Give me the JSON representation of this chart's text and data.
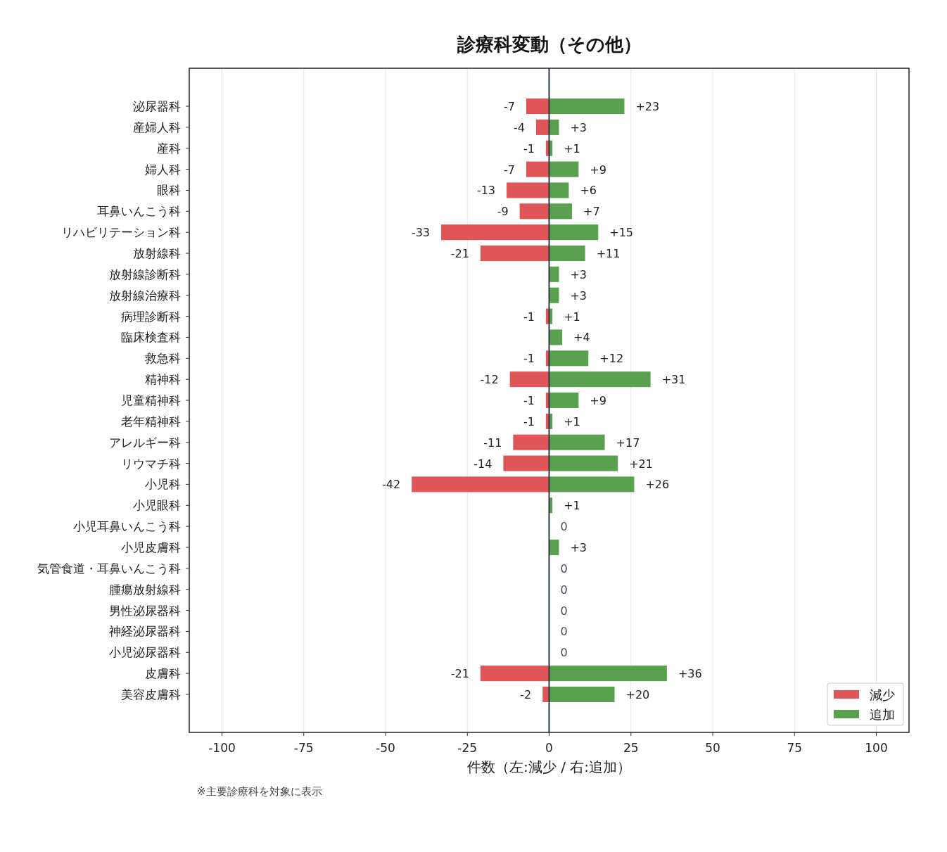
{
  "chart_data": {
    "type": "bar",
    "orientation": "horizontal",
    "stacked": true,
    "title": "診療科変動（その他）",
    "xlabel": "件数（左:減少 / 右:追加）",
    "annotations": [
      "※主要診療科を対象に表示"
    ],
    "categories": [
      "泌尿器科",
      "産婦人科",
      "産科",
      "婦人科",
      "眼科",
      "耳鼻いんこう科",
      "リハビリテーション科",
      "放射線科",
      "放射線診断科",
      "放射線治療科",
      "病理診断科",
      "臨床検査科",
      "救急科",
      "精神科",
      "児童精神科",
      "老年精神科",
      "アレルギー科",
      "リウマチ科",
      "小児科",
      "小児眼科",
      "小児耳鼻いんこう科",
      "小児皮膚科",
      "気管食道・耳鼻いんこう科",
      "腫瘍放射線科",
      "男性泌尿器科",
      "神経泌尿器科",
      "小児泌尿器科",
      "皮膚科",
      "美容皮膚科"
    ],
    "series": [
      {
        "name": "減少",
        "color": "#e05558",
        "values": [
          -7,
          -4,
          -1,
          -7,
          -13,
          -9,
          -33,
          -21,
          0,
          0,
          -1,
          0,
          -1,
          -12,
          -1,
          -1,
          -11,
          -14,
          -42,
          0,
          0,
          0,
          0,
          0,
          0,
          0,
          0,
          -21,
          -2
        ],
        "value_labels": [
          "-7",
          "-4",
          "-1",
          "-7",
          "-13",
          "-9",
          "-33",
          "-21",
          null,
          null,
          "-1",
          null,
          "-1",
          "-12",
          "-1",
          "-1",
          "-11",
          "-14",
          "-42",
          null,
          null,
          null,
          null,
          null,
          null,
          null,
          null,
          "-21",
          "-2"
        ]
      },
      {
        "name": "追加",
        "color": "#59a14f",
        "values": [
          23,
          3,
          1,
          9,
          6,
          7,
          15,
          11,
          3,
          3,
          1,
          4,
          12,
          31,
          9,
          1,
          17,
          21,
          26,
          1,
          0,
          3,
          0,
          0,
          0,
          0,
          0,
          36,
          20
        ],
        "value_labels": [
          "+23",
          "+3",
          "+1",
          "+9",
          "+6",
          "+7",
          "+15",
          "+11",
          "+3",
          "+3",
          "+1",
          "+4",
          "+12",
          "+31",
          "+9",
          "+1",
          "+17",
          "+21",
          "+26",
          "+1",
          "0",
          "+3",
          "0",
          "0",
          "0",
          "0",
          "0",
          "+36",
          "+20"
        ]
      }
    ],
    "xlim": [
      -110,
      110
    ],
    "xticks": [
      -100,
      -75,
      -50,
      -25,
      0,
      25,
      50,
      75,
      100
    ],
    "grid": "x",
    "legend": "bottom right",
    "ref_lines": [
      {
        "axis": "x",
        "value": 0,
        "color": "#2d3a4a"
      }
    ]
  }
}
